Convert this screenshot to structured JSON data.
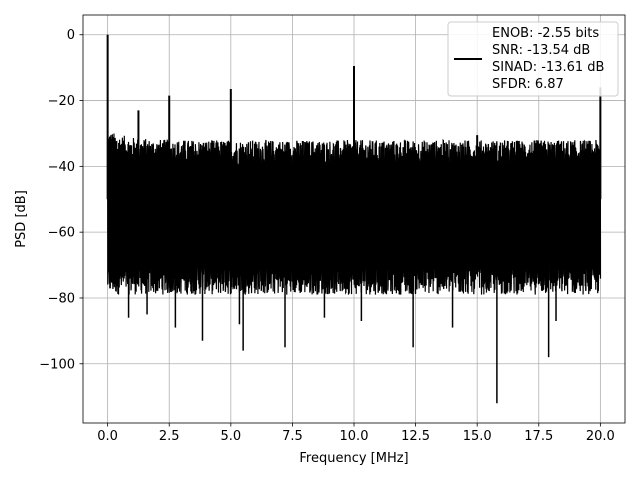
{
  "chart_data": {
    "type": "line",
    "title": "",
    "xlabel": "Frequency [MHz]",
    "ylabel": "PSD [dB]",
    "xlim": [
      -1,
      21
    ],
    "ylim": [
      -118,
      6
    ],
    "grid": true,
    "legend_position": "top-right",
    "x_ticks": [
      0.0,
      2.5,
      5.0,
      7.5,
      10.0,
      12.5,
      15.0,
      17.5,
      20.0
    ],
    "x_tick_labels": [
      "0.0",
      "2.5",
      "5.0",
      "7.5",
      "10.0",
      "12.5",
      "15.0",
      "17.5",
      "20.0"
    ],
    "y_ticks": [
      0,
      -20,
      -40,
      -60,
      -80,
      -100
    ],
    "y_tick_labels": [
      "0",
      "−20",
      "−40",
      "−60",
      "−80",
      "−100"
    ],
    "series": [
      {
        "name": "ENOB: -2.55 bits\nSNR: -13.54 dB\nSINAD: -13.61 dB\nSFDR: 6.87",
        "legend_lines": [
          "ENOB: -2.55 bits",
          "SNR: -13.54 dB",
          "SINAD: -13.61 dB",
          "SFDR: 6.87"
        ],
        "color": "#000000",
        "noise_band_upper_db": -36,
        "noise_band_lower_db": -74,
        "spurs": [
          {
            "x": 0.0,
            "y": 0
          },
          {
            "x": 1.25,
            "y": -23
          },
          {
            "x": 2.5,
            "y": -18.5
          },
          {
            "x": 5.0,
            "y": -16.5
          },
          {
            "x": 10.0,
            "y": -9.5
          },
          {
            "x": 15.0,
            "y": -30.5
          },
          {
            "x": 20.0,
            "y": -16
          }
        ],
        "dips": [
          {
            "x": 0.1,
            "y": -77
          },
          {
            "x": 0.85,
            "y": -86
          },
          {
            "x": 1.6,
            "y": -85
          },
          {
            "x": 2.75,
            "y": -89
          },
          {
            "x": 3.85,
            "y": -93
          },
          {
            "x": 5.35,
            "y": -88
          },
          {
            "x": 5.5,
            "y": -96
          },
          {
            "x": 7.2,
            "y": -95
          },
          {
            "x": 8.8,
            "y": -86
          },
          {
            "x": 10.3,
            "y": -87
          },
          {
            "x": 12.4,
            "y": -95
          },
          {
            "x": 14.0,
            "y": -89
          },
          {
            "x": 15.8,
            "y": -112
          },
          {
            "x": 17.9,
            "y": -98
          },
          {
            "x": 18.2,
            "y": -87
          }
        ]
      }
    ]
  }
}
